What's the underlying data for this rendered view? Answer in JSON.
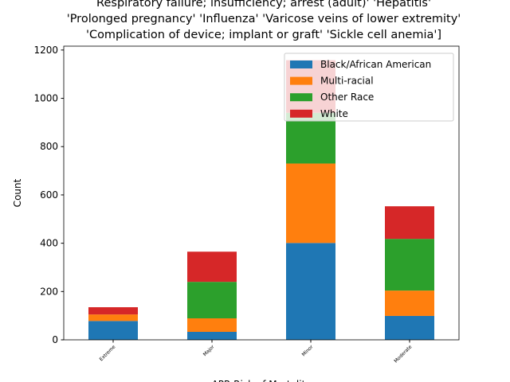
{
  "chart_data": {
    "type": "stacked-bar",
    "title": [
      "Respiratory failure; insufficiency; arrest (adult)' 'Hepatitis'",
      "'Prolonged pregnancy' 'Influenza' 'Varicose veins of lower extremity'",
      "'Complication of device; implant or graft' 'Sickle cell anemia']"
    ],
    "x_label": "APR Risk of Mortality",
    "y_label": "Count",
    "categories": [
      "Extreme",
      "Major",
      "Minor",
      "Moderate"
    ],
    "series": [
      {
        "name": "Black/African American",
        "color": "#1f77b4",
        "values": [
          78,
          33,
          401,
          99
        ]
      },
      {
        "name": "Multi-racial",
        "color": "#ff7f0e",
        "values": [
          27,
          56,
          329,
          105
        ]
      },
      {
        "name": "Other Race",
        "color": "#2ca02c",
        "values": [
          0,
          151,
          210,
          214
        ]
      },
      {
        "name": "White",
        "color": "#d62728",
        "values": [
          30,
          125,
          218,
          135
        ]
      }
    ],
    "ylim": [
      0,
      1216
    ],
    "yticks": [
      0,
      200,
      400,
      600,
      800,
      1000,
      1200
    ],
    "legend": "upper right"
  }
}
